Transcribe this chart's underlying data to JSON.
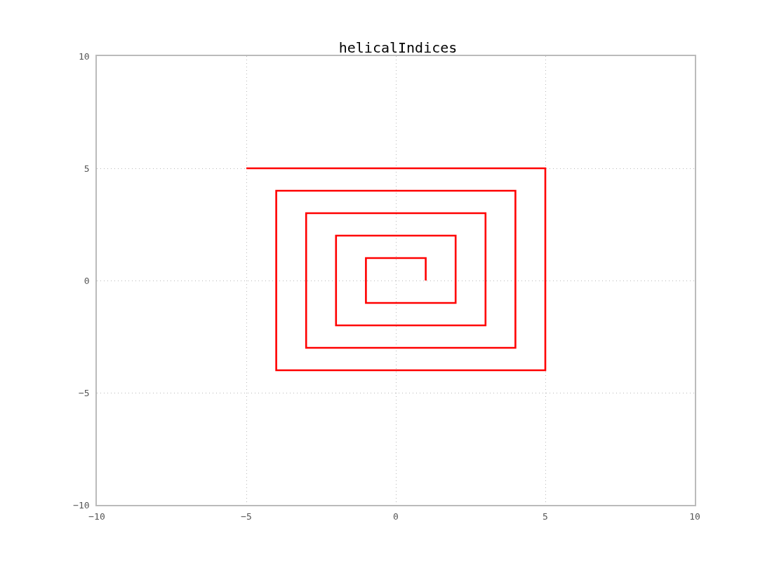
{
  "chart_data": {
    "type": "line",
    "title": "helicalIndices",
    "x": [
      1,
      1,
      -1,
      -1,
      2,
      2,
      -2,
      -2,
      3,
      3,
      -3,
      -3,
      4,
      4,
      -4,
      -4,
      5,
      5,
      -5
    ],
    "series": [
      {
        "color": "#ff0000",
        "values": [
          0,
          1,
          1,
          -1,
          -1,
          2,
          2,
          -2,
          -2,
          3,
          3,
          -3,
          -3,
          4,
          4,
          -4,
          -4,
          5,
          5
        ]
      }
    ],
    "xlim": [
      -10,
      10
    ],
    "ylim": [
      -10,
      10
    ],
    "xticks": [
      {
        "value": -10,
        "label": "−10"
      },
      {
        "value": -5,
        "label": "−5"
      },
      0,
      5,
      10
    ],
    "yticks": [
      {
        "value": -10,
        "label": "−10"
      },
      {
        "value": -5,
        "label": "−5"
      },
      0,
      5,
      10
    ],
    "grid": true,
    "marker": "none",
    "line_style": "solid"
  }
}
